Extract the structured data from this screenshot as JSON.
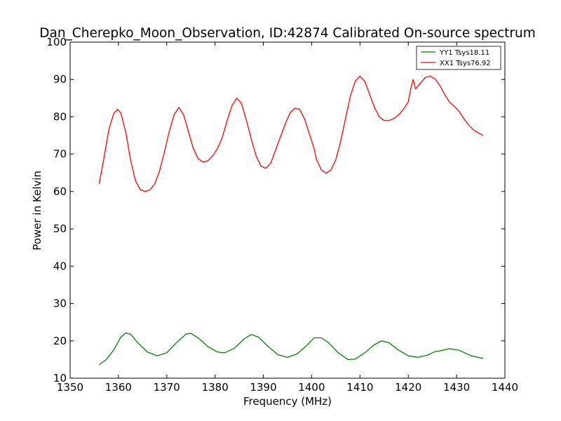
{
  "chart_data": {
    "type": "line",
    "title": "Dan_Cherepko_Moon_Observation, ID:42874 Calibrated On-source spectrum",
    "xlabel": "Frequency (MHz)",
    "ylabel": "Power in Kelvin",
    "xlim": [
      1350,
      1440
    ],
    "ylim": [
      10,
      100
    ],
    "xticks": [
      "1350",
      "1360",
      "1370",
      "1380",
      "1390",
      "1400",
      "1410",
      "1420",
      "1430",
      "1440"
    ],
    "yticks": [
      "10",
      "20",
      "30",
      "40",
      "50",
      "60",
      "70",
      "80",
      "90",
      "100"
    ],
    "grid": false,
    "legend_position": "top-right",
    "series": [
      {
        "name": "YY1 Tsys18.11",
        "color": "#008000",
        "points": [
          [
            1356,
            13.6
          ],
          [
            1357.5,
            15.0
          ],
          [
            1359,
            17.5
          ],
          [
            1360.5,
            21.0
          ],
          [
            1361.5,
            22.1
          ],
          [
            1362.5,
            21.8
          ],
          [
            1364,
            19.5
          ],
          [
            1366,
            17.0
          ],
          [
            1368,
            16.0
          ],
          [
            1370,
            16.8
          ],
          [
            1372,
            19.5
          ],
          [
            1374,
            21.8
          ],
          [
            1375,
            22.0
          ],
          [
            1376.5,
            20.8
          ],
          [
            1378.5,
            18.5
          ],
          [
            1380.5,
            17.0
          ],
          [
            1382,
            16.8
          ],
          [
            1384,
            18.0
          ],
          [
            1386,
            20.5
          ],
          [
            1387.5,
            21.7
          ],
          [
            1389,
            21.0
          ],
          [
            1391,
            18.5
          ],
          [
            1393,
            16.3
          ],
          [
            1395,
            15.6
          ],
          [
            1397,
            16.5
          ],
          [
            1399,
            18.8
          ],
          [
            1400.5,
            20.8
          ],
          [
            1402,
            20.8
          ],
          [
            1403.5,
            19.5
          ],
          [
            1405.5,
            16.8
          ],
          [
            1407.5,
            15.0
          ],
          [
            1409,
            15.1
          ],
          [
            1411,
            16.8
          ],
          [
            1413,
            19.0
          ],
          [
            1414.5,
            20.0
          ],
          [
            1416,
            19.5
          ],
          [
            1418,
            17.5
          ],
          [
            1420,
            16.0
          ],
          [
            1422,
            15.6
          ],
          [
            1424,
            16.2
          ],
          [
            1425.5,
            17.1
          ],
          [
            1426.5,
            17.3
          ],
          [
            1428.5,
            17.9
          ],
          [
            1430.5,
            17.5
          ],
          [
            1433,
            16.0
          ],
          [
            1435.5,
            15.3
          ]
        ]
      },
      {
        "name": "XX1 Tsys76.92",
        "color": "#ff0000",
        "points": [
          [
            1356,
            62.0
          ],
          [
            1357,
            69.0
          ],
          [
            1358,
            76.5
          ],
          [
            1359,
            80.8
          ],
          [
            1359.8,
            82.0
          ],
          [
            1360.5,
            81.0
          ],
          [
            1361.5,
            76.0
          ],
          [
            1362.5,
            68.5
          ],
          [
            1363.5,
            63.0
          ],
          [
            1364.5,
            60.5
          ],
          [
            1365.5,
            60.0
          ],
          [
            1366.5,
            60.4
          ],
          [
            1367.5,
            62.0
          ],
          [
            1368.5,
            65.5
          ],
          [
            1369.5,
            70.5
          ],
          [
            1370.5,
            76.0
          ],
          [
            1371.5,
            80.5
          ],
          [
            1372.5,
            82.5
          ],
          [
            1373.5,
            80.5
          ],
          [
            1374.5,
            76.0
          ],
          [
            1375.5,
            71.5
          ],
          [
            1376.5,
            68.8
          ],
          [
            1377.5,
            67.9
          ],
          [
            1378.5,
            68.2
          ],
          [
            1379.5,
            69.5
          ],
          [
            1380.5,
            71.5
          ],
          [
            1381.5,
            74.5
          ],
          [
            1382.5,
            79.0
          ],
          [
            1383.5,
            83.0
          ],
          [
            1384.5,
            85.0
          ],
          [
            1385.5,
            83.5
          ],
          [
            1386.5,
            79.0
          ],
          [
            1387.5,
            74.0
          ],
          [
            1388.5,
            69.5
          ],
          [
            1389.5,
            66.8
          ],
          [
            1390.5,
            66.2
          ],
          [
            1391.5,
            67.5
          ],
          [
            1392.5,
            71.0
          ],
          [
            1393.5,
            74.5
          ],
          [
            1394.5,
            78.0
          ],
          [
            1395.5,
            81.0
          ],
          [
            1396.5,
            82.3
          ],
          [
            1397.5,
            82.0
          ],
          [
            1398.5,
            79.5
          ],
          [
            1399.5,
            75.5
          ],
          [
            1400.5,
            71.5
          ],
          [
            1401,
            68.5
          ],
          [
            1402,
            65.8
          ],
          [
            1403,
            64.9
          ],
          [
            1404,
            65.8
          ],
          [
            1405,
            68.5
          ],
          [
            1406,
            73.5
          ],
          [
            1407,
            79.5
          ],
          [
            1408,
            85.5
          ],
          [
            1409,
            89.5
          ],
          [
            1410,
            90.9
          ],
          [
            1411,
            89.5
          ],
          [
            1412,
            86.0
          ],
          [
            1413,
            82.5
          ],
          [
            1414,
            80.0
          ],
          [
            1415,
            79.0
          ],
          [
            1416,
            79.0
          ],
          [
            1417,
            79.5
          ],
          [
            1418,
            80.5
          ],
          [
            1419,
            82.0
          ],
          [
            1420,
            84.0
          ],
          [
            1420.5,
            87.5
          ],
          [
            1421,
            90.0
          ],
          [
            1421.5,
            87.5
          ],
          [
            1422.5,
            89.0
          ],
          [
            1423.5,
            90.5
          ],
          [
            1424.5,
            90.9
          ],
          [
            1425.5,
            90.2
          ],
          [
            1426.5,
            88.5
          ],
          [
            1427.5,
            86.0
          ],
          [
            1428.5,
            84.0
          ],
          [
            1429.5,
            82.8
          ],
          [
            1430.5,
            81.5
          ],
          [
            1431.5,
            79.5
          ],
          [
            1432.5,
            77.8
          ],
          [
            1433.5,
            76.5
          ],
          [
            1434.5,
            75.7
          ],
          [
            1435.5,
            75.0
          ]
        ]
      }
    ]
  }
}
